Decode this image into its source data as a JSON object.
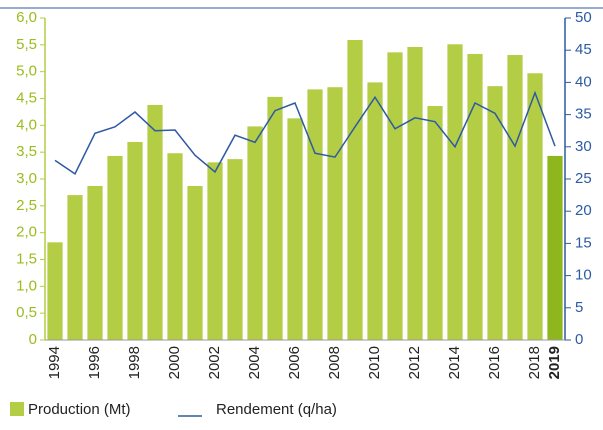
{
  "chart_data": {
    "type": "bar_line",
    "categories": [
      "1994",
      null,
      "1996",
      null,
      "1998",
      null,
      "2000",
      null,
      "2002",
      null,
      "2004",
      null,
      "2006",
      null,
      "2008",
      null,
      "2010",
      null,
      "2012",
      null,
      "2014",
      null,
      "2016",
      null,
      "2018",
      "2019"
    ],
    "series": [
      {
        "name": "Production (Mt)",
        "color": "#b3cd45",
        "type": "bar",
        "colors": [
          "#b3cd45",
          "#b3cd45",
          "#b3cd45",
          "#b3cd45",
          "#b3cd45",
          "#b3cd45",
          "#b3cd45",
          "#b3cd45",
          "#b3cd45",
          "#b3cd45",
          "#b3cd45",
          "#b3cd45",
          "#b3cd45",
          "#b3cd45",
          "#b3cd45",
          "#b3cd45",
          "#b3cd45",
          "#b3cd45",
          "#b3cd45",
          "#b3cd45",
          "#b3cd45",
          "#b3cd45",
          "#b3cd45",
          "#b3cd45",
          "#b3cd45",
          "#8db71c"
        ],
        "values": [
          1.82,
          2.7,
          2.87,
          3.43,
          3.69,
          4.38,
          3.48,
          2.87,
          3.31,
          3.37,
          3.98,
          4.53,
          4.13,
          4.67,
          4.71,
          5.59,
          4.8,
          5.36,
          5.46,
          4.36,
          5.51,
          5.33,
          4.73,
          5.31,
          4.97,
          3.43
        ]
      },
      {
        "name": "Rendement (q/ha)",
        "color": "#2e5aa3",
        "type": "line",
        "axis": "y2",
        "values": [
          27.9,
          25.8,
          32.1,
          33.1,
          35.4,
          32.5,
          32.6,
          28.7,
          26.1,
          31.8,
          30.7,
          35.6,
          36.8,
          29.0,
          28.4,
          33.1,
          37.7,
          32.8,
          34.5,
          33.9,
          30.0,
          36.8,
          35.2,
          30.1,
          38.4,
          30.1
        ]
      }
    ],
    "ylim": [
      0,
      6
    ],
    "yticks": [
      {
        "value": 0,
        "label": "0"
      },
      {
        "value": 0.5,
        "label": "0,5"
      },
      {
        "value": 1,
        "label": "1,0"
      },
      {
        "value": 1.5,
        "label": "1,5"
      },
      {
        "value": 2,
        "label": "2,0"
      },
      {
        "value": 2.5,
        "label": "2,5"
      },
      {
        "value": 3,
        "label": "3,0"
      },
      {
        "value": 3.5,
        "label": "3,5"
      },
      {
        "value": 4,
        "label": "4,0"
      },
      {
        "value": 4.5,
        "label": "4,5"
      },
      {
        "value": 5,
        "label": "5,0"
      },
      {
        "value": 5.5,
        "label": "5,5"
      },
      {
        "value": 6,
        "label": "6,0"
      }
    ],
    "y2lim": [
      0,
      50
    ],
    "y2ticks": [
      0,
      5,
      10,
      15,
      20,
      25,
      30,
      35,
      40,
      45,
      50
    ],
    "grid": false
  }
}
